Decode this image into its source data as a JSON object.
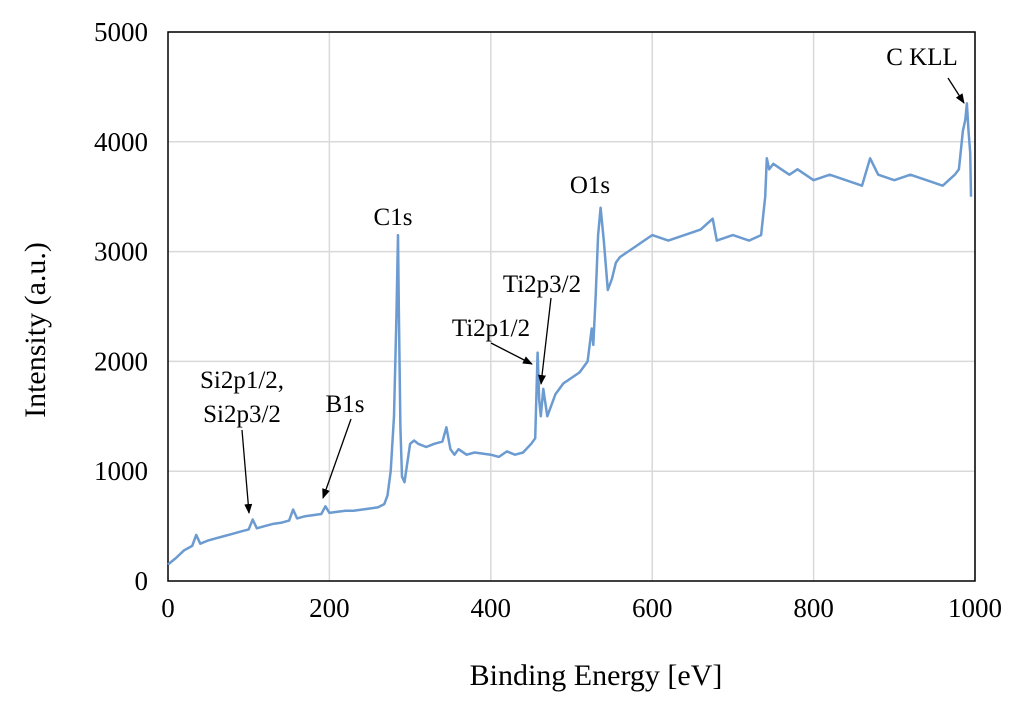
{
  "chart_data": {
    "type": "line",
    "title": "",
    "xlabel": "Binding Energy [eV]",
    "ylabel": "Intensity (a.u.)",
    "xlim": [
      0,
      1000
    ],
    "ylim": [
      0,
      5000
    ],
    "x_ticks": [
      0,
      200,
      400,
      600,
      800,
      1000
    ],
    "y_ticks": [
      0,
      1000,
      2000,
      3000,
      4000,
      5000
    ],
    "grid": true,
    "legend": "none",
    "series_color": "#6b9bd0",
    "series": [
      {
        "x": [
          0,
          10,
          20,
          30,
          35,
          40,
          50,
          60,
          70,
          80,
          90,
          100,
          105,
          110,
          120,
          130,
          140,
          150,
          155,
          160,
          170,
          180,
          190,
          195,
          200,
          210,
          220,
          230,
          240,
          250,
          260,
          268,
          272,
          276,
          280,
          283,
          285,
          286,
          288,
          290,
          293,
          296,
          300,
          305,
          310,
          320,
          330,
          340,
          345,
          350,
          355,
          360,
          370,
          380,
          390,
          400,
          410,
          420,
          430,
          440,
          450,
          455,
          458,
          460,
          462,
          465,
          470,
          480,
          490,
          500,
          510,
          520,
          525,
          527,
          530,
          533,
          536,
          540,
          545,
          550,
          555,
          560,
          570,
          580,
          590,
          600,
          620,
          640,
          660,
          675,
          680,
          700,
          720,
          735,
          740,
          742,
          745,
          750,
          760,
          770,
          780,
          800,
          820,
          840,
          860,
          870,
          880,
          900,
          920,
          940,
          960,
          975,
          980,
          985,
          988,
          990,
          992,
          994,
          995
        ],
        "y": [
          150,
          210,
          280,
          320,
          420,
          340,
          370,
          390,
          410,
          430,
          450,
          470,
          560,
          480,
          500,
          520,
          530,
          550,
          650,
          570,
          590,
          600,
          610,
          680,
          620,
          630,
          640,
          640,
          650,
          660,
          670,
          700,
          780,
          1000,
          1500,
          2400,
          3150,
          2500,
          1400,
          950,
          900,
          1050,
          1250,
          1280,
          1250,
          1220,
          1250,
          1270,
          1400,
          1200,
          1150,
          1200,
          1150,
          1170,
          1160,
          1150,
          1130,
          1180,
          1150,
          1170,
          1250,
          1300,
          2080,
          1650,
          1500,
          1750,
          1500,
          1700,
          1800,
          1850,
          1900,
          2000,
          2300,
          2150,
          2600,
          3150,
          3400,
          3100,
          2650,
          2750,
          2900,
          2950,
          3000,
          3050,
          3100,
          3150,
          3100,
          3150,
          3200,
          3300,
          3100,
          3150,
          3100,
          3150,
          3500,
          3850,
          3750,
          3800,
          3750,
          3700,
          3750,
          3650,
          3700,
          3650,
          3600,
          3850,
          3700,
          3650,
          3700,
          3650,
          3600,
          3700,
          3750,
          4100,
          4200,
          4350,
          4100,
          3900,
          3500
        ]
      }
    ],
    "annotations": [
      {
        "text": "C1s",
        "x": 285
      },
      {
        "text": "O1s",
        "x": 533
      },
      {
        "text": "Ti2p3/2",
        "x": 465
      },
      {
        "text": "Ti2p1/2",
        "x": 458
      },
      {
        "text": "B1s",
        "x": 195
      },
      {
        "text": "Si2p1/2,",
        "x": 105
      },
      {
        "text": "Si2p3/2",
        "x": 105
      },
      {
        "text": "C KLL",
        "x": 990
      }
    ]
  }
}
